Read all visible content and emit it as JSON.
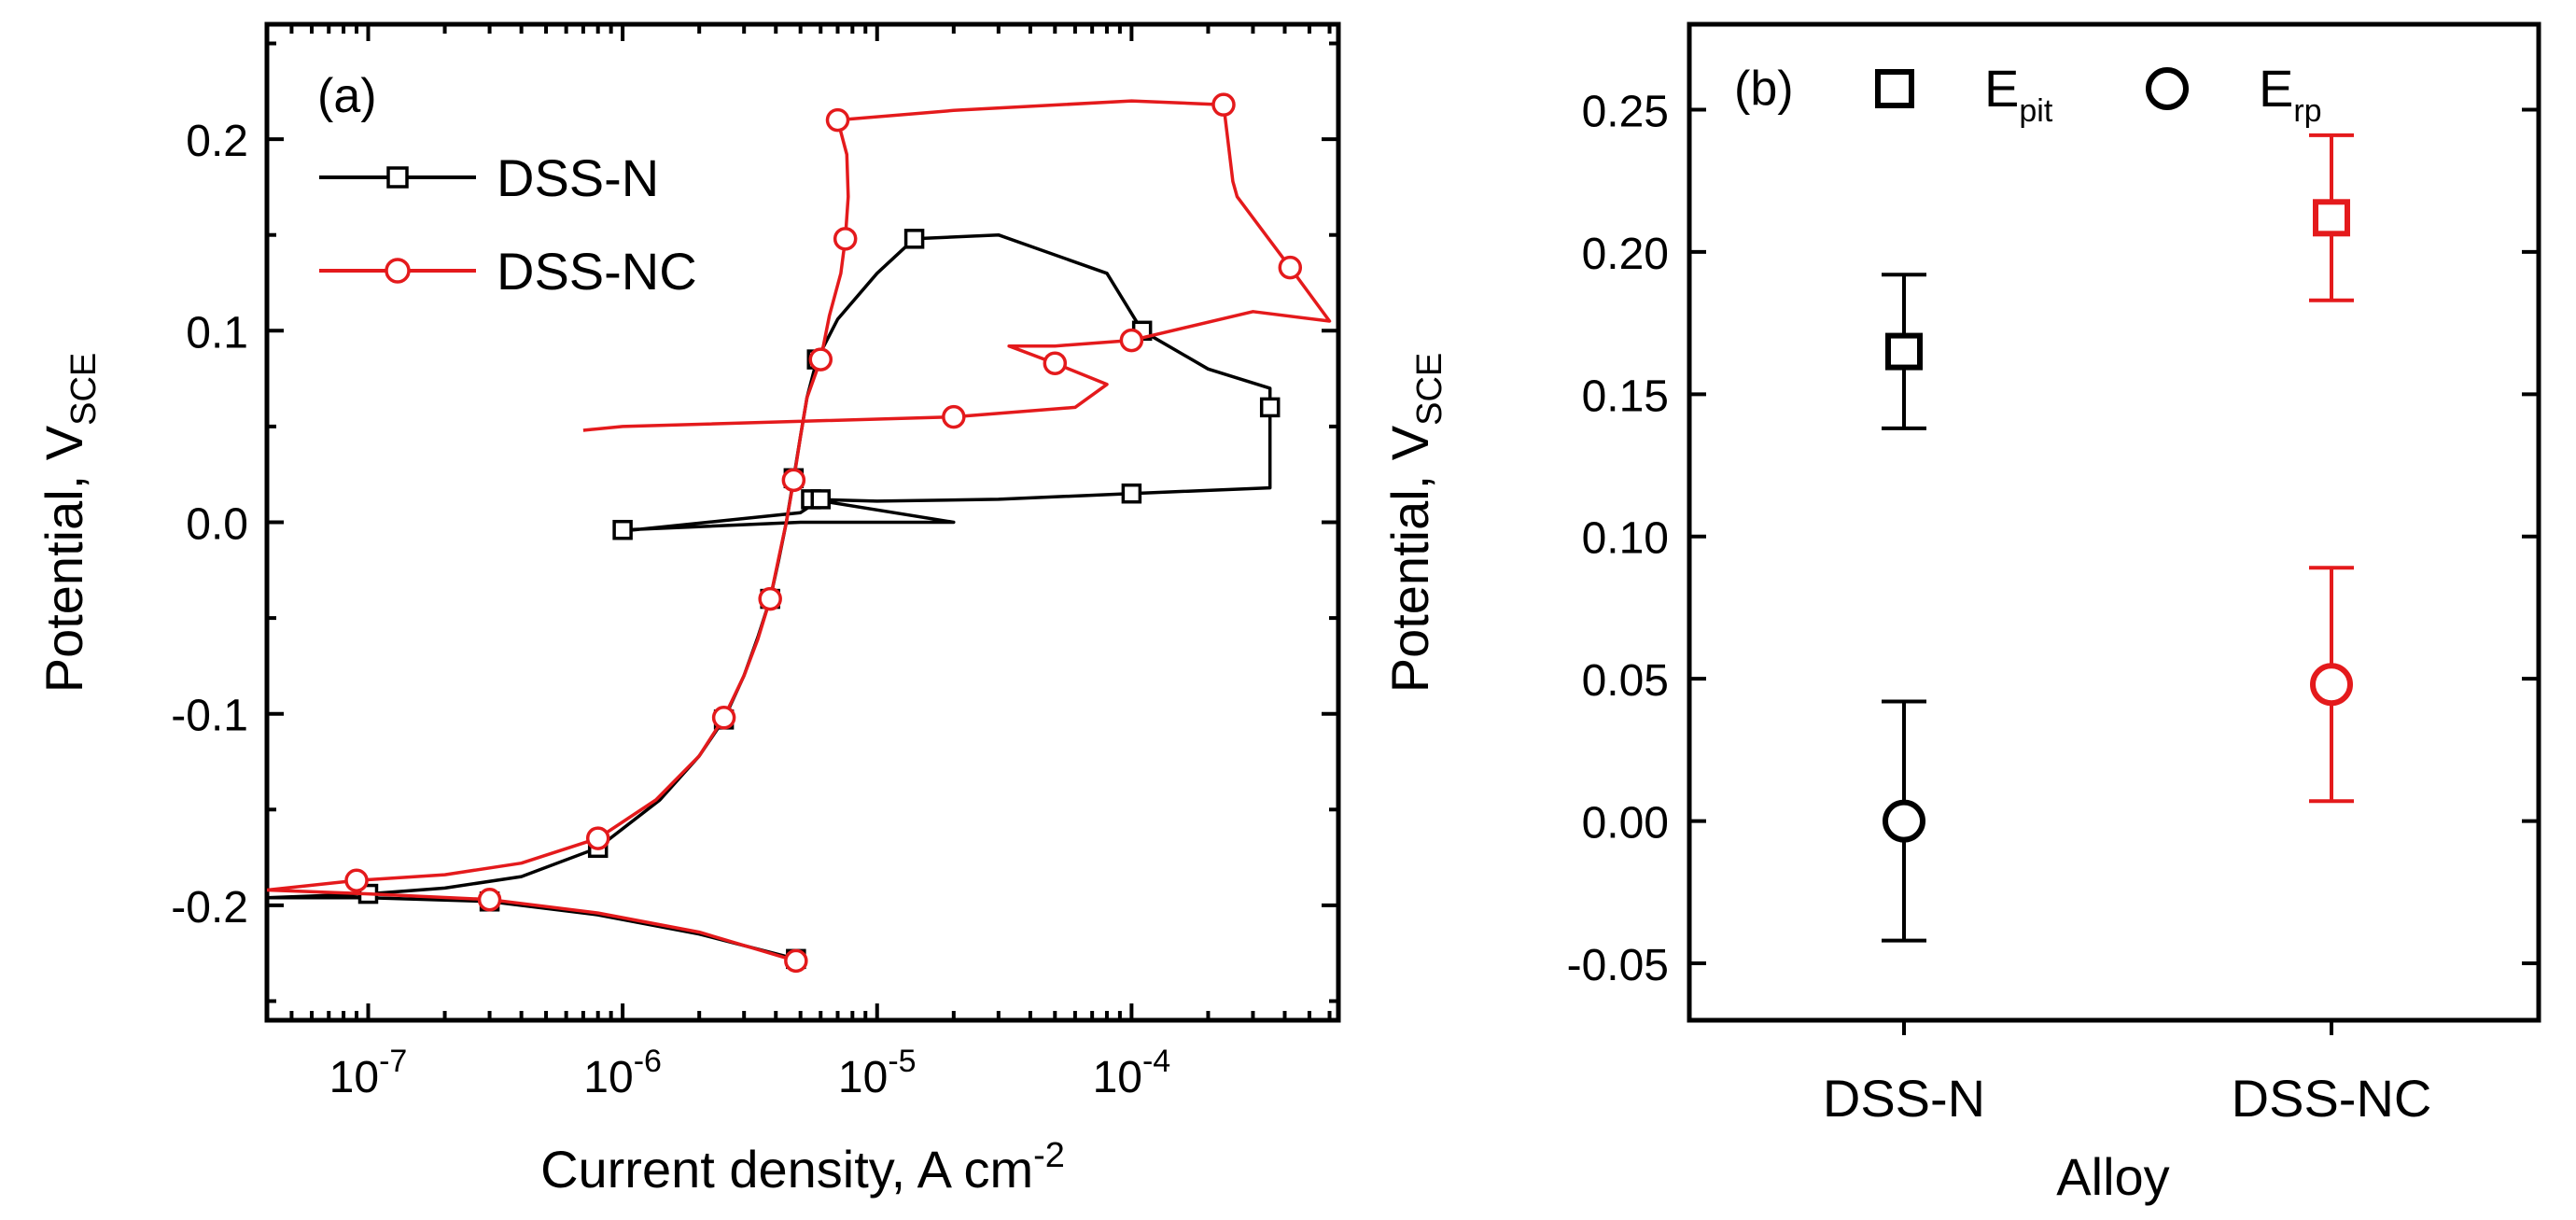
{
  "chart_data": [
    {
      "panel": "(a)",
      "type": "line",
      "xscale": "log",
      "xlabel": "Current density, A cm",
      "xlabel_sup": "-2",
      "ylabel": "Potential, V",
      "ylabel_sub": "SCE",
      "xlim": [
        4e-08,
        0.00065
      ],
      "ylim": [
        -0.26,
        0.26
      ],
      "xticks": [
        1e-07,
        1e-06,
        1e-05,
        0.0001
      ],
      "xtick_labels": [
        "10",
        "10",
        "10",
        "10"
      ],
      "xtick_exps": [
        "-7",
        "-6",
        "-5",
        "-4"
      ],
      "yticks": [
        -0.2,
        -0.1,
        0.0,
        0.1,
        0.2
      ],
      "ytick_labels": [
        "-0.2",
        "-0.1",
        "0.0",
        "0.1",
        "0.2"
      ],
      "series": [
        {
          "name": "DSS-N",
          "color": "#000000",
          "marker": "square",
          "points": [
            [
              4.8e-06,
              -0.228
            ],
            [
              2e-06,
              -0.215
            ],
            [
              8e-07,
              -0.205
            ],
            [
              3e-07,
              -0.198
            ],
            [
              1e-07,
              -0.196
            ],
            [
              4e-08,
              -0.196
            ],
            [
              1e-07,
              -0.194
            ],
            [
              2e-07,
              -0.191
            ],
            [
              4e-07,
              -0.185
            ],
            [
              8e-07,
              -0.17
            ],
            [
              1.4e-06,
              -0.145
            ],
            [
              2e-06,
              -0.122
            ],
            [
              2.5e-06,
              -0.103
            ],
            [
              3e-06,
              -0.08
            ],
            [
              3.4e-06,
              -0.06
            ],
            [
              3.8e-06,
              -0.04
            ],
            [
              4.1e-06,
              -0.02
            ],
            [
              4.4e-06,
              0.0
            ],
            [
              4.7e-06,
              0.023
            ],
            [
              5e-06,
              0.045
            ],
            [
              5.3e-06,
              0.065
            ],
            [
              5.8e-06,
              0.085
            ],
            [
              7e-06,
              0.106
            ],
            [
              1e-05,
              0.13
            ],
            [
              1.4e-05,
              0.148
            ],
            [
              3e-05,
              0.15
            ],
            [
              8e-05,
              0.13
            ],
            [
              0.00011,
              0.1
            ],
            [
              0.0002,
              0.08
            ],
            [
              0.00035,
              0.07
            ],
            [
              0.00035,
              0.06
            ],
            [
              0.00035,
              0.03
            ],
            [
              0.00035,
              0.018
            ],
            [
              0.0001,
              0.015
            ],
            [
              3e-05,
              0.012
            ],
            [
              1e-05,
              0.011
            ],
            [
              5.5e-06,
              0.012
            ],
            [
              2e-05,
              0.0
            ],
            [
              5e-06,
              0.0
            ],
            [
              1e-06,
              -0.004
            ],
            [
              1.1e-06,
              -0.004
            ],
            [
              5e-06,
              0.005
            ],
            [
              6e-06,
              0.012
            ]
          ]
        },
        {
          "name": "DSS-NC",
          "color": "#e41a1c",
          "marker": "circle",
          "points": [
            [
              4.8e-06,
              -0.229
            ],
            [
              2e-06,
              -0.214
            ],
            [
              8e-07,
              -0.204
            ],
            [
              3e-07,
              -0.197
            ],
            [
              1e-07,
              -0.194
            ],
            [
              4e-08,
              -0.192
            ],
            [
              9e-08,
              -0.187
            ],
            [
              2e-07,
              -0.184
            ],
            [
              4e-07,
              -0.178
            ],
            [
              8e-07,
              -0.165
            ],
            [
              1.35e-06,
              -0.145
            ],
            [
              2e-06,
              -0.122
            ],
            [
              2.5e-06,
              -0.102
            ],
            [
              3e-06,
              -0.08
            ],
            [
              3.4e-06,
              -0.061
            ],
            [
              3.8e-06,
              -0.04
            ],
            [
              4.1e-06,
              -0.019
            ],
            [
              4.4e-06,
              0.0
            ],
            [
              4.7e-06,
              0.022
            ],
            [
              5e-06,
              0.045
            ],
            [
              5.3e-06,
              0.065
            ],
            [
              6e-06,
              0.085
            ],
            [
              6.5e-06,
              0.108
            ],
            [
              7.2e-06,
              0.13
            ],
            [
              7.5e-06,
              0.148
            ],
            [
              7.7e-06,
              0.17
            ],
            [
              7.6e-06,
              0.192
            ],
            [
              7e-06,
              0.21
            ],
            [
              2e-05,
              0.215
            ],
            [
              0.0001,
              0.22
            ],
            [
              0.00023,
              0.218
            ],
            [
              0.00025,
              0.178
            ],
            [
              0.00026,
              0.17
            ],
            [
              0.00042,
              0.133
            ],
            [
              0.0006,
              0.105
            ],
            [
              0.0003,
              0.11
            ],
            [
              0.0001,
              0.095
            ],
            [
              5e-05,
              0.092
            ],
            [
              3.3e-05,
              0.092
            ],
            [
              5e-05,
              0.083
            ],
            [
              8e-05,
              0.072
            ],
            [
              6e-05,
              0.06
            ],
            [
              2e-05,
              0.055
            ],
            [
              1e-06,
              0.05
            ],
            [
              7e-07,
              0.048
            ]
          ]
        }
      ],
      "legend": [
        "DSS-N",
        "DSS-NC"
      ]
    },
    {
      "panel": "(b)",
      "type": "scatter",
      "xlabel": "Alloy",
      "ylabel": "Potential, V",
      "ylabel_sub": "SCE",
      "categories": [
        "DSS-N",
        "DSS-NC"
      ],
      "ylim": [
        -0.07,
        0.28
      ],
      "yticks": [
        -0.05,
        0.0,
        0.05,
        0.1,
        0.15,
        0.2,
        0.25
      ],
      "ytick_labels": [
        "-0.05",
        "0.00",
        "0.05",
        "0.10",
        "0.15",
        "0.20",
        "0.25"
      ],
      "series": [
        {
          "name": "E",
          "name_sub": "pit",
          "marker": "square",
          "values": [
            0.165,
            0.212
          ],
          "errors": [
            0.027,
            0.029
          ]
        },
        {
          "name": "E",
          "name_sub": "rp",
          "marker": "circle",
          "values": [
            0.0,
            0.048
          ],
          "errors": [
            0.042,
            0.041
          ]
        }
      ],
      "colors": [
        "#000000",
        "#e41a1c"
      ],
      "legend": [
        "E",
        "E"
      ],
      "legend_subs": [
        "pit",
        "rp"
      ]
    }
  ]
}
